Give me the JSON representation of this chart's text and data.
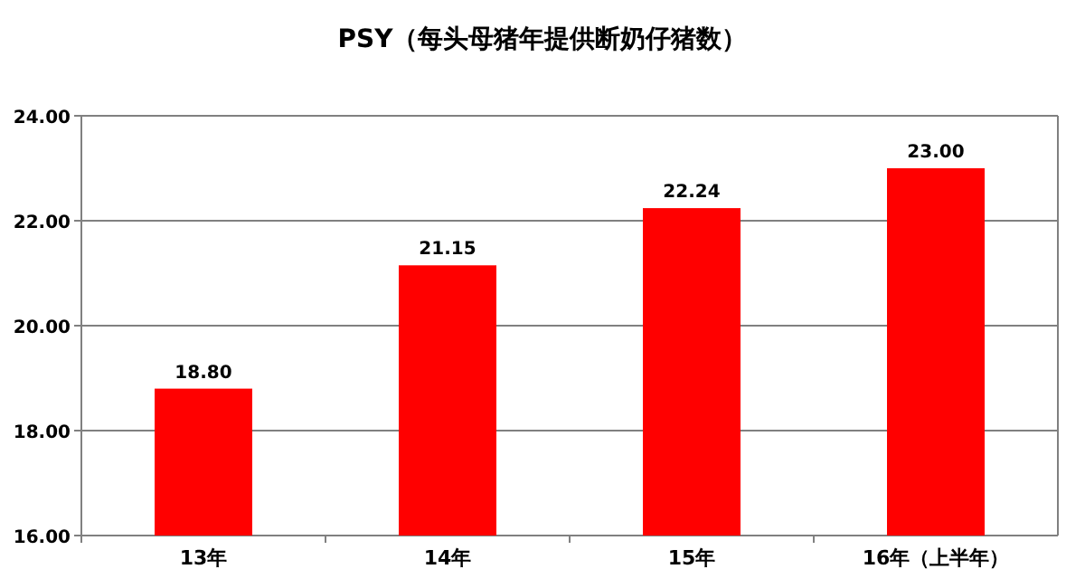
{
  "chart_data": {
    "type": "bar",
    "title": "PSY（每头母猪年提供断奶仔猪数）",
    "categories": [
      "13年",
      "14年",
      "15年",
      "16年（上半年）"
    ],
    "values": [
      18.8,
      21.15,
      22.24,
      23.0
    ],
    "value_labels": [
      "18.80",
      "21.15",
      "22.24",
      "23.00"
    ],
    "color": "#ff0000",
    "ylim": [
      16,
      24
    ],
    "yticks": [
      {
        "value": 16,
        "label": "16.00"
      },
      {
        "value": 18,
        "label": "18.00"
      },
      {
        "value": 20,
        "label": "20.00"
      },
      {
        "value": 22,
        "label": "22.00"
      },
      {
        "value": 24,
        "label": "24.00"
      }
    ],
    "grid": "y"
  }
}
